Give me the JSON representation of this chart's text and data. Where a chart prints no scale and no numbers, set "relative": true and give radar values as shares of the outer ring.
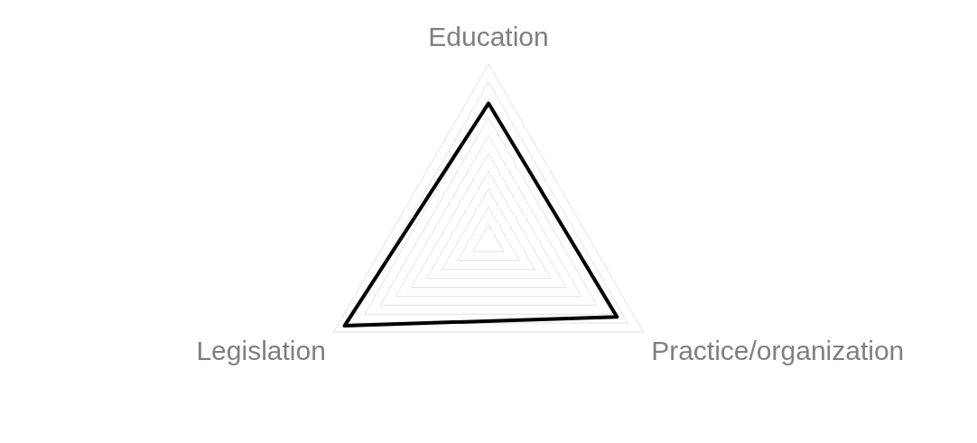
{
  "chart_data": {
    "type": "radar",
    "relative": true,
    "categories": [
      "Education",
      "Practice/organization",
      "Legislation"
    ],
    "series": [
      {
        "color": "#000000",
        "values": [
          0.78,
          0.83,
          0.93
        ]
      }
    ],
    "grid": true,
    "legend": false,
    "marker": "none"
  }
}
